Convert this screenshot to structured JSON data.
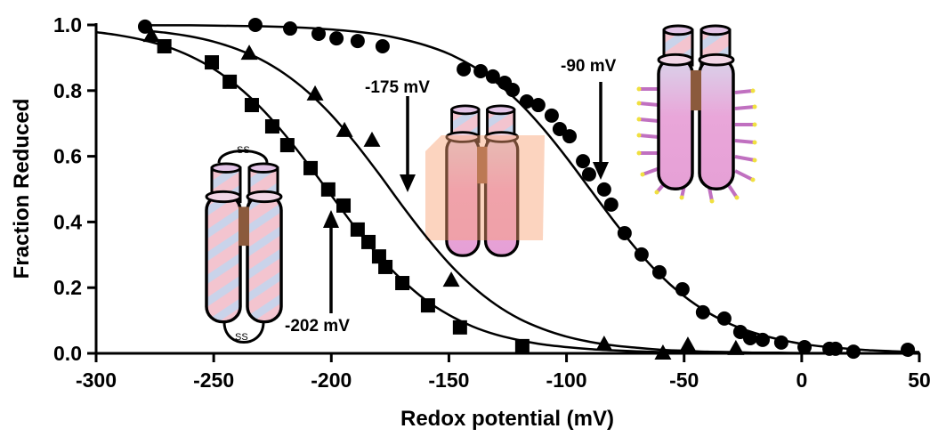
{
  "chart_data": {
    "type": "scatter",
    "x_label": "Redox potential (mV)",
    "y_label": "Fraction Reduced",
    "xlim": [
      -300,
      50
    ],
    "ylim": [
      0,
      1
    ],
    "xticks": [
      -300,
      -250,
      -200,
      -150,
      -100,
      -50,
      0,
      50
    ],
    "yticks": [
      {
        "value": 0,
        "label": "0.0"
      },
      0.2,
      0.4,
      0.6,
      0.8,
      {
        "value": 1,
        "label": "1.0"
      }
    ],
    "color": "#000000",
    "series": [
      {
        "marker": "square",
        "x": [
          -271,
          -250.8,
          -243.2,
          -233.8,
          -225.1,
          -218.7,
          -208.8,
          -201.3,
          -194.8,
          -188.8,
          -184.2,
          -179.7,
          -177,
          -169.8,
          -158.9,
          -145.3,
          -118.8
        ],
        "values": [
          0.935,
          0.886,
          0.827,
          0.756,
          0.691,
          0.634,
          0.564,
          0.499,
          0.45,
          0.377,
          0.339,
          0.295,
          0.263,
          0.214,
          0.146,
          0.079,
          0.022
        ]
      },
      {
        "marker": "triangle",
        "x": [
          -276.5,
          -234.9,
          -206.9,
          -194.4,
          -182.7,
          -149,
          -84,
          -59,
          -48.4,
          -28
        ],
        "values": [
          0.967,
          0.913,
          0.789,
          0.678,
          0.648,
          0.222,
          0.027,
          0,
          0.024,
          0.014
        ]
      },
      {
        "marker": "circle",
        "x": [
          -279.2,
          -232.3,
          -217.5,
          -205.4,
          -197.8,
          -188.8,
          -178.2,
          -143.7,
          -136.5,
          -131.3,
          -126.3,
          -122.9,
          -116.9,
          -112,
          -106.3,
          -102.9,
          -98.7,
          -93,
          -90.4,
          -84,
          -81,
          -75.3,
          -68.1,
          -60.5,
          -50.7,
          -42,
          -32.9,
          -26.1,
          -21.9,
          -16.6,
          -8.7,
          1.2,
          11.8,
          14.4,
          22,
          45.1
        ],
        "values": [
          0.995,
          1,
          0.989,
          0.973,
          0.959,
          0.951,
          0.935,
          0.865,
          0.859,
          0.843,
          0.824,
          0.802,
          0.767,
          0.756,
          0.724,
          0.683,
          0.661,
          0.585,
          0.545,
          0.499,
          0.453,
          0.366,
          0.301,
          0.247,
          0.195,
          0.125,
          0.106,
          0.065,
          0.046,
          0.041,
          0.033,
          0.019,
          0.014,
          0.014,
          0.005,
          0.011
        ]
      }
    ],
    "curves": [
      {
        "x": [
          -300,
          -290,
          -280,
          -270,
          -260,
          -250,
          -240,
          -230,
          -220,
          -210,
          -200,
          -190,
          -180,
          -170,
          -160,
          -150,
          -140,
          -130,
          -120,
          -110,
          -100,
          -90,
          -80,
          -70,
          -60,
          -50,
          -40,
          -30,
          -20,
          -10,
          0,
          10,
          20,
          30,
          40,
          50
        ],
        "values": [
          0.978,
          0.968,
          0.954,
          0.934,
          0.905,
          0.866,
          0.814,
          0.748,
          0.668,
          0.577,
          0.481,
          0.385,
          0.298,
          0.224,
          0.163,
          0.117,
          0.082,
          0.057,
          0.04,
          0.027,
          0.019,
          0.013,
          0.009,
          0.006,
          0.004,
          0.003,
          0.002,
          0.001,
          0.001,
          0.001,
          0,
          0,
          0,
          0,
          0,
          0
        ]
      },
      {
        "x": [
          -280,
          -270,
          -260,
          -250,
          -240,
          -230,
          -220,
          -210,
          -200,
          -190,
          -180,
          -170,
          -160,
          -150,
          -140,
          -130,
          -120,
          -110,
          -100,
          -90,
          -80,
          -70,
          -60,
          -50,
          -40,
          -30,
          -20,
          -10,
          0,
          10,
          20,
          30,
          40,
          50
        ],
        "values": [
          0.983,
          0.976,
          0.965,
          0.949,
          0.926,
          0.895,
          0.852,
          0.796,
          0.726,
          0.642,
          0.549,
          0.451,
          0.358,
          0.274,
          0.204,
          0.148,
          0.105,
          0.074,
          0.051,
          0.035,
          0.024,
          0.017,
          0.011,
          0.008,
          0.005,
          0.004,
          0.002,
          0.002,
          0.001,
          0.001,
          0.001,
          0,
          0,
          0
        ]
      },
      {
        "x": [
          -280,
          -270,
          -260,
          -250,
          -240,
          -230,
          -220,
          -210,
          -200,
          -190,
          -180,
          -170,
          -160,
          -150,
          -140,
          -130,
          -120,
          -110,
          -100,
          -90,
          -80,
          -70,
          -60,
          -50,
          -40,
          -30,
          -20,
          -10,
          0,
          10,
          20,
          30,
          40,
          50
        ],
        "values": [
          0.999,
          0.999,
          0.999,
          0.998,
          0.997,
          0.996,
          0.994,
          0.991,
          0.986,
          0.98,
          0.971,
          0.957,
          0.938,
          0.912,
          0.875,
          0.826,
          0.763,
          0.685,
          0.596,
          0.5,
          0.404,
          0.315,
          0.237,
          0.174,
          0.125,
          0.088,
          0.062,
          0.043,
          0.029,
          0.02,
          0.014,
          0.009,
          0.006,
          0.004
        ]
      }
    ],
    "annotations": [
      "-202 mV",
      "-175 mV",
      "-90 mV"
    ]
  }
}
